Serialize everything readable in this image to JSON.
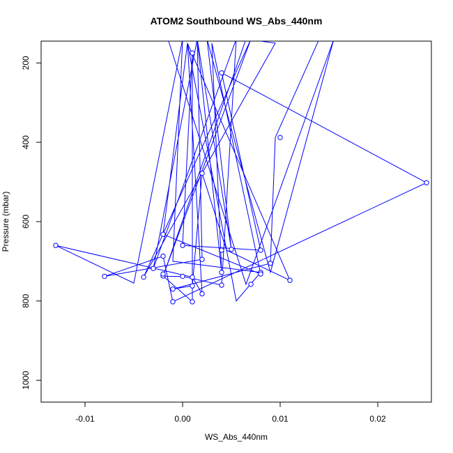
{
  "chart_data": {
    "type": "scatter",
    "title": "ATOM2 Southbound WS_Abs_440nm",
    "xlabel": "WS_Abs_440nm",
    "ylabel": "Pressure (mbar)",
    "xlim": [
      -0.0145,
      0.0255
    ],
    "ylim": [
      1055,
      145
    ],
    "y_inverted": true,
    "x_ticks": [
      -0.01,
      0,
      0.01,
      0.02
    ],
    "x_tick_labels": [
      "-0.01",
      "0.00",
      "0.01",
      "0.02"
    ],
    "y_ticks": [
      200,
      400,
      600,
      800,
      1000
    ],
    "y_tick_labels": [
      "200",
      "400",
      "600",
      "800",
      "1000"
    ],
    "grid": false,
    "legend": "none",
    "line_color": "#0000ff",
    "marker": "open-circle",
    "series": [
      {
        "points": [
          [
            0.014,
            140
          ],
          [
            0.0095,
            388
          ],
          [
            0.009,
            705
          ],
          [
            -0.001,
            770
          ],
          [
            0.001,
            762
          ],
          [
            0.002,
            478
          ],
          [
            0.0045,
            672
          ],
          [
            0.011,
            748
          ],
          [
            0.0005,
            150
          ],
          [
            0.0055,
            800
          ],
          [
            0.008,
            728
          ],
          [
            -0.001,
            700
          ],
          [
            0.0,
            140
          ],
          [
            -0.005,
            755
          ],
          [
            -0.013,
            660
          ],
          [
            0.001,
            740
          ],
          [
            0.002,
            782
          ],
          [
            0.0005,
            150
          ],
          [
            -0.002,
            632
          ],
          [
            0.008,
            732
          ],
          [
            0.003,
            150
          ],
          [
            0.004,
            728
          ],
          [
            0.0015,
            140
          ],
          [
            0.002,
            695
          ],
          [
            -0.008,
            738
          ],
          [
            -0.002,
            687
          ],
          [
            -0.001,
            802
          ],
          [
            0.025,
            502
          ],
          [
            0.004,
            225
          ],
          [
            0.008,
            672
          ],
          [
            0.0,
            660
          ],
          [
            0.001,
            175
          ],
          [
            0.001,
            802
          ],
          [
            -0.002,
            737
          ],
          [
            0.007,
            140
          ],
          [
            -0.004,
            740
          ],
          [
            0.0095,
            150
          ],
          [
            0.0065,
            140
          ],
          [
            -0.002,
            738
          ],
          [
            0.0,
            738
          ],
          [
            0.004,
            760
          ],
          [
            0.0055,
            140
          ],
          [
            -0.003,
            718
          ],
          [
            0.0015,
            140
          ],
          [
            0.005,
            670
          ],
          [
            0.0025,
            140
          ],
          [
            0.009,
            728
          ],
          [
            0.0155,
            140
          ],
          [
            0.0065,
            758
          ],
          [
            -0.0015,
            140
          ]
        ],
        "markers": [
          [
            0.01,
            388
          ],
          [
            0.009,
            705
          ],
          [
            -0.001,
            770
          ],
          [
            0.001,
            762
          ],
          [
            0.002,
            478
          ],
          [
            0.004,
            672
          ],
          [
            0.011,
            748
          ],
          [
            0.008,
            728
          ],
          [
            -0.013,
            660
          ],
          [
            0.001,
            740
          ],
          [
            0.002,
            782
          ],
          [
            -0.002,
            632
          ],
          [
            0.008,
            732
          ],
          [
            0.004,
            728
          ],
          [
            0.002,
            695
          ],
          [
            -0.008,
            738
          ],
          [
            -0.002,
            687
          ],
          [
            -0.001,
            802
          ],
          [
            0.025,
            502
          ],
          [
            0.004,
            225
          ],
          [
            0.008,
            672
          ],
          [
            0.0,
            660
          ],
          [
            0.001,
            175
          ],
          [
            0.001,
            802
          ],
          [
            -0.002,
            737
          ],
          [
            -0.004,
            740
          ],
          [
            -0.002,
            732
          ],
          [
            0.0,
            738
          ],
          [
            0.004,
            760
          ],
          [
            -0.003,
            718
          ],
          [
            0.005,
            670
          ],
          [
            0.007,
            758
          ]
        ]
      }
    ]
  }
}
